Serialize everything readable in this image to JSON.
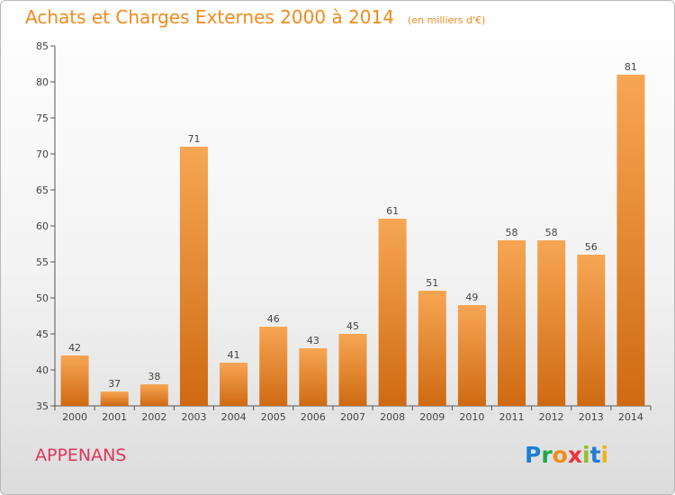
{
  "header": {
    "title": "Achats et Charges Externes 2000 à 2014",
    "subtitle": "(en milliers d'€)"
  },
  "footer": {
    "commune": "APPENANS",
    "brand_letters": [
      {
        "ch": "P",
        "color": "#1f7fd1"
      },
      {
        "ch": "r",
        "color": "#1fa84a"
      },
      {
        "ch": "o",
        "color": "#f08c1a"
      },
      {
        "ch": "x",
        "color": "#e8343a"
      },
      {
        "ch": "i",
        "color": "#8fbf2a"
      },
      {
        "ch": "t",
        "color": "#1f7fd1"
      },
      {
        "ch": "i",
        "color": "#f0b41a"
      }
    ]
  },
  "chart_data": {
    "type": "bar",
    "title": "Achats et Charges Externes 2000 à 2014",
    "subtitle": "(en milliers d'€)",
    "categories": [
      "2000",
      "2001",
      "2002",
      "2003",
      "2004",
      "2005",
      "2006",
      "2007",
      "2008",
      "2009",
      "2010",
      "2011",
      "2012",
      "2013",
      "2014"
    ],
    "values": [
      42,
      37,
      38,
      71,
      41,
      46,
      43,
      45,
      61,
      51,
      49,
      58,
      58,
      56,
      81
    ],
    "ylim": [
      35,
      85
    ],
    "yticks": [
      35,
      40,
      45,
      50,
      55,
      60,
      65,
      70,
      75,
      80,
      85
    ],
    "grid": false,
    "data_labels": true,
    "bar_color_top": "#f7a654",
    "bar_color_bottom": "#cf6a12"
  }
}
